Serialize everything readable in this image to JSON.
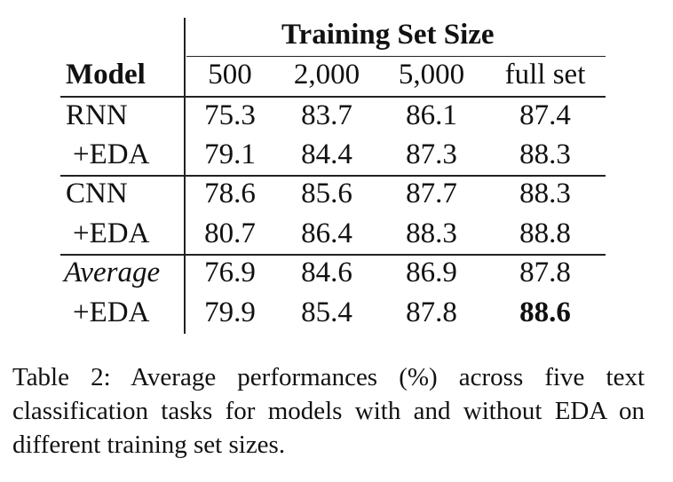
{
  "table": {
    "header_group": "Training Set Size",
    "model_header": "Model",
    "columns": [
      "500",
      "2,000",
      "5,000",
      "full set"
    ],
    "rows": [
      {
        "label": "RNN",
        "values": [
          "75.3",
          "83.7",
          "86.1",
          "87.4"
        ]
      },
      {
        "label": "+EDA",
        "values": [
          "79.1",
          "84.4",
          "87.3",
          "88.3"
        ]
      },
      {
        "label": "CNN",
        "values": [
          "78.6",
          "85.6",
          "87.7",
          "88.3"
        ]
      },
      {
        "label": "+EDA",
        "values": [
          "80.7",
          "86.4",
          "88.3",
          "88.8"
        ]
      },
      {
        "label": "Average",
        "values": [
          "76.9",
          "84.6",
          "86.9",
          "87.8"
        ]
      },
      {
        "label": "+EDA",
        "values": [
          "79.9",
          "85.4",
          "87.8",
          "88.6"
        ]
      }
    ]
  },
  "caption": "Table 2:  Average performances (%) across five text classification tasks for models with and without EDA on different training set sizes."
}
